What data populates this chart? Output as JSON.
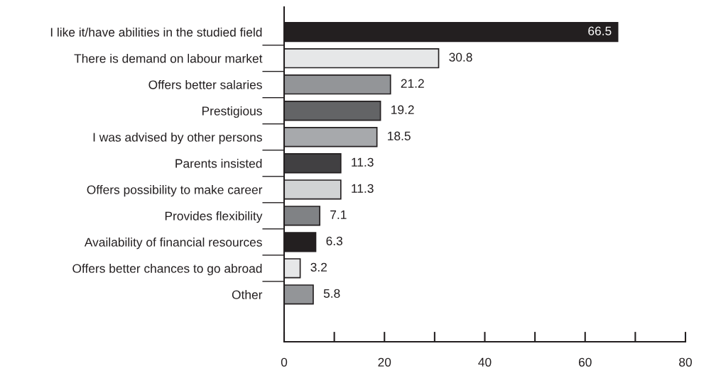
{
  "chart_data": {
    "type": "bar",
    "orientation": "horizontal",
    "categories": [
      "I like it/have abilities in the studied field",
      "There is demand on labour market",
      "Offers better salaries",
      "Prestigious",
      "I was advised by other persons",
      "Parents insisted",
      "Offers possibility to make career",
      "Provides flexibility",
      "Availability of financial resources",
      "Offers better chances to go abroad",
      "Other"
    ],
    "values": [
      66.5,
      30.8,
      21.2,
      19.2,
      18.5,
      11.3,
      11.3,
      7.1,
      6.3,
      3.2,
      5.8
    ],
    "colors": [
      "#231f20",
      "#e6e7e8",
      "#939598",
      "#636466",
      "#a7a9ac",
      "#414042",
      "#d1d3d4",
      "#808285",
      "#231f20",
      "#e6e7e8",
      "#939598"
    ],
    "xlim": [
      0,
      80
    ],
    "xticks": [
      0,
      {
        "value": 10,
        "label": null
      },
      20,
      {
        "value": 30,
        "label": null
      },
      40,
      {
        "value": 50,
        "label": null
      },
      60,
      {
        "value": 70,
        "label": null
      },
      80
    ],
    "data_labels": true,
    "grid": false,
    "legend": false
  }
}
